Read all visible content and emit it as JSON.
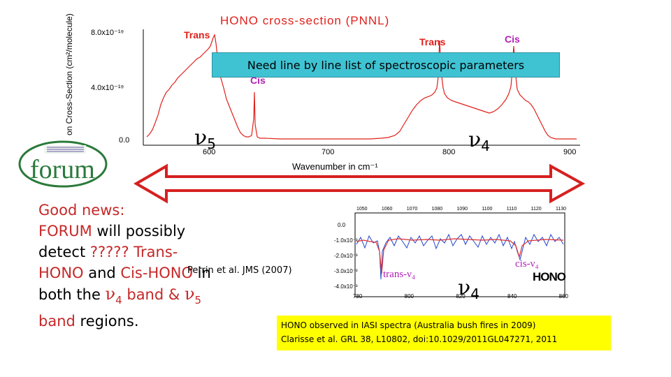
{
  "chart": {
    "title": "HONO cross-section (PNNL)",
    "ylabel": "on Cross-Section (cm²/molecule)",
    "yticks": [
      "8.0x10⁻¹⁹",
      "4.0x10⁻¹⁹",
      "0.0"
    ],
    "xticks": [
      "600",
      "700",
      "800",
      "900"
    ],
    "xlabel": "Wavenumber in cm⁻¹",
    "peak_labels": {
      "trans_left": "Trans",
      "trans_right": "Trans",
      "cis_right": "Cis",
      "cis_left": "Cis"
    },
    "nu5": {
      "symbol": "ν",
      "sub": "5"
    },
    "nu4": {
      "symbol": "ν",
      "sub": "4"
    }
  },
  "callout": "Need line by line list of spectroscopic parameters",
  "logo": {
    "name": "forum-logo",
    "text": "forum"
  },
  "text_block": {
    "line1": "Good news:",
    "forum": "FORUM",
    "line2_rest": " will possibly",
    "line3a": "detect ",
    "line3b": "????? Trans-",
    "line4a": "HONO",
    "line4b": " and ",
    "line4c": "Cis-HONO",
    "line4d": " in",
    "line5a": "both the ",
    "nu4_sym": "ν",
    "nu4_sub": "4",
    "line5b": " band & ",
    "nu5_sym": "ν",
    "nu5_sub": "5",
    "line6a": "band",
    "line6b": " regions."
  },
  "ref_perrin": "Perrin et al. JMS (2007)",
  "iasi": {
    "yticks": [
      "0.0",
      "-1.0x10⁻³",
      "-2.0x10⁻³",
      "-3.0x10⁻³",
      "-4.0x10⁻³"
    ],
    "xticks_top": [
      "1050",
      "1060",
      "1070",
      "1080",
      "1090",
      "1100",
      "1110",
      "1120",
      "1130"
    ],
    "xticks_bottom": [
      "780",
      "800",
      "820",
      "840",
      "860"
    ],
    "trans_label": "trans-ν₄",
    "cis_label": "cis-ν₄",
    "hono_label": "HONO",
    "nu4": {
      "symbol": "ν",
      "sub": "4"
    }
  },
  "yellow_box": {
    "line1": "HONO observed in IASI spectra  (Australia bush fires in 2009)",
    "line2": "Clarisse et al. GRL 38, L10802, doi:10.1029/2011GL047271, 2011"
  },
  "colors": {
    "spectrum": "#e0201b",
    "callout_bg": "#3fc3d3",
    "arrow": "#d62020",
    "text_red": "#c62828",
    "cis_purple": "#b21fb8",
    "yellow": "#ffff00",
    "iasi_blue": "#2244cc",
    "iasi_red": "#e03030"
  }
}
